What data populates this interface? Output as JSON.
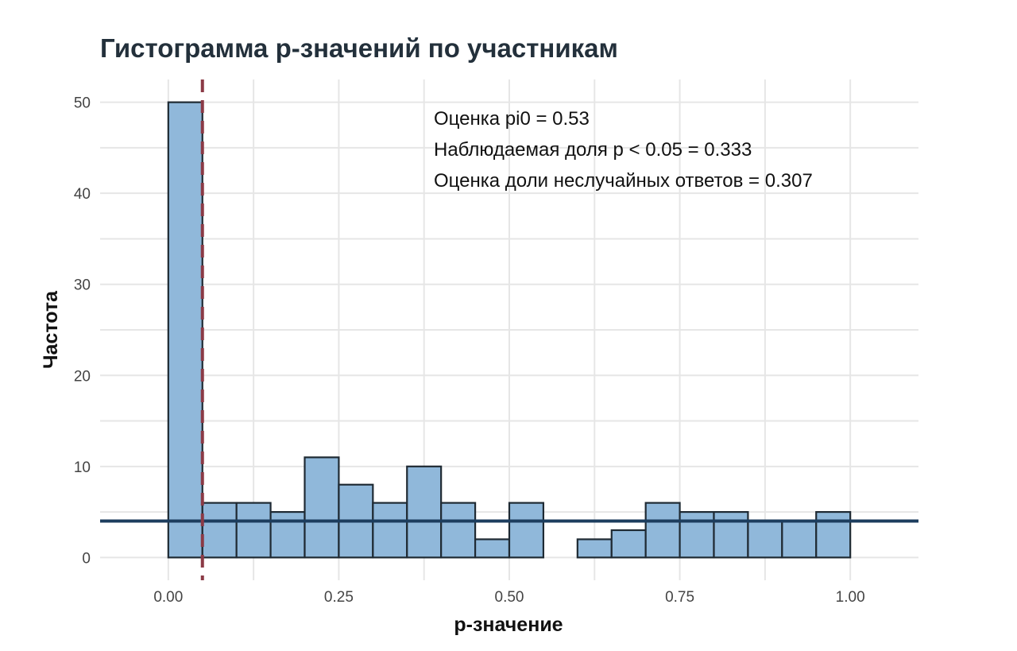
{
  "chart_data": {
    "type": "bar",
    "title": "Гистограмма p-значений по участникам",
    "xlabel": "p-значение",
    "ylabel": "Частота",
    "xlim": [
      -0.1,
      1.1
    ],
    "ylim": [
      -2.5,
      52.5
    ],
    "xticks": [
      0,
      0.25,
      0.5,
      0.75,
      1
    ],
    "xtick_labels": [
      "0.00",
      "0.25",
      "0.50",
      "0.75",
      "1.00"
    ],
    "yticks": [
      0,
      10,
      20,
      30,
      40,
      50
    ],
    "ytick_labels": [
      "0",
      "10",
      "20",
      "30",
      "40",
      "50"
    ],
    "bin_width": 0.05,
    "bin_starts": [
      0,
      0.05,
      0.1,
      0.15,
      0.2,
      0.25,
      0.3,
      0.35,
      0.4,
      0.45,
      0.5,
      0.55,
      0.6,
      0.65,
      0.7,
      0.75,
      0.8,
      0.85,
      0.9,
      0.95
    ],
    "values": [
      50,
      6,
      6,
      5,
      11,
      8,
      6,
      10,
      6,
      2,
      6,
      0,
      2,
      3,
      6,
      5,
      5,
      4,
      4,
      5
    ],
    "vline": {
      "x": 0.05,
      "color": "#8b3a46",
      "style": "dashed"
    },
    "hline": {
      "y": 4,
      "color": "#1c3d5e"
    },
    "annotations": [
      "Оценка pi0 = 0.53",
      "Наблюдаемая доля p < 0.05 = 0.333",
      "Оценка доли неслучайных ответов = 0.307"
    ],
    "grid": true,
    "bar_color": "#90b8da",
    "bar_edge_color": "#1f2a33"
  }
}
